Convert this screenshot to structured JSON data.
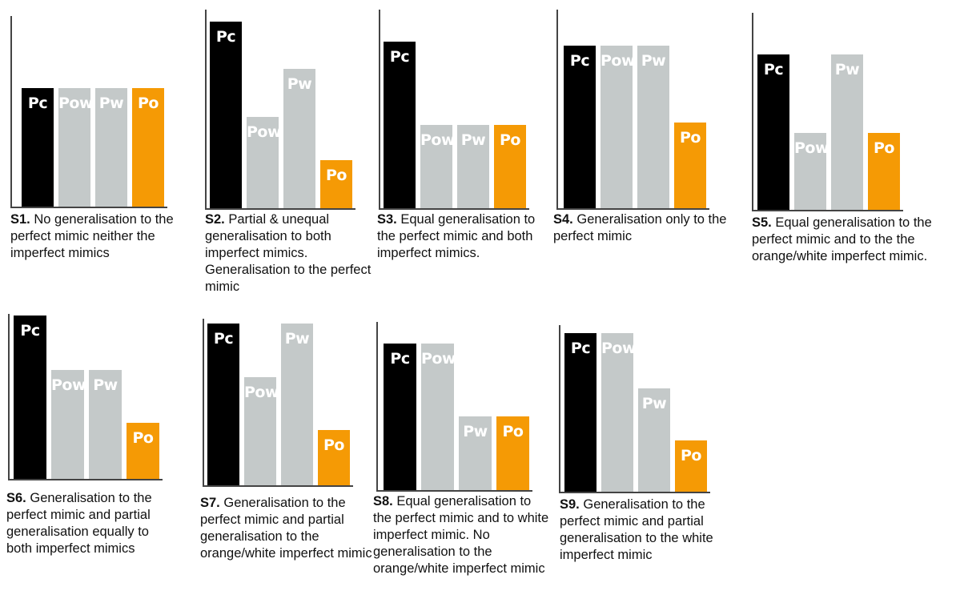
{
  "colors": {
    "Pc": "#000000",
    "Pow": "#c4c9c9",
    "Pw": "#c4c9c9",
    "Po": "#f59a05"
  },
  "chart_data": [
    {
      "type": "bar",
      "id": "S1",
      "categories": [
        "Pc",
        "Pow",
        "Pw",
        "Po"
      ],
      "values": [
        0.62,
        0.62,
        0.62,
        0.62
      ],
      "caption_id": "S1.",
      "caption_text": "No generalisation to the perfect mimic neither the imperfect mimics"
    },
    {
      "type": "bar",
      "id": "S2",
      "categories": [
        "Pc",
        "Pow",
        "Pw",
        "Po"
      ],
      "values": [
        0.94,
        0.46,
        0.7,
        0.24
      ],
      "caption_id": "S2.",
      "caption_text": "Partial & unequal generalisation to both imperfect mimics. Generalisation to the perfect mimic"
    },
    {
      "type": "bar",
      "id": "S3",
      "categories": [
        "Pc",
        "Pow",
        "Pw",
        "Po"
      ],
      "values": [
        0.84,
        0.42,
        0.42,
        0.42
      ],
      "caption_id": "S3.",
      "caption_text": "Equal generalisation to the perfect mimic and both imperfect mimics."
    },
    {
      "type": "bar",
      "id": "S4",
      "categories": [
        "Pc",
        "Pow",
        "Pw",
        "Po"
      ],
      "values": [
        0.82,
        0.82,
        0.82,
        0.43
      ],
      "caption_id": "S4.",
      "caption_text": "Generalisation only to the perfect mimic"
    },
    {
      "type": "bar",
      "id": "S5",
      "categories": [
        "Pc",
        "Pow",
        "Pw",
        "Po"
      ],
      "values": [
        0.79,
        0.39,
        0.79,
        0.39
      ],
      "caption_id": "S5.",
      "caption_text": "Equal generalisation to the perfect mimic and to the the orange/white imperfect mimic."
    },
    {
      "type": "bar",
      "id": "S6",
      "categories": [
        "Pc",
        "Pow",
        "Pw",
        "Po"
      ],
      "values": [
        0.99,
        0.66,
        0.66,
        0.34
      ],
      "caption_id": "S6.",
      "caption_text": "Generalisation to the perfect mimic and partial generalisation equally to both imperfect mimics"
    },
    {
      "type": "bar",
      "id": "S7",
      "categories": [
        "Pc",
        "Pow",
        "Pw",
        "Po"
      ],
      "values": [
        0.97,
        0.65,
        0.97,
        0.33
      ],
      "caption_id": "S7.",
      "caption_text": "Generalisation to the perfect mimic and partial generalisation to the orange/white imperfect mimic"
    },
    {
      "type": "bar",
      "id": "S8",
      "categories": [
        "Pc",
        "Pow",
        "Pw",
        "Po"
      ],
      "values": [
        0.87,
        0.87,
        0.44,
        0.44
      ],
      "caption_id": "S8.",
      "caption_text": "Equal generalisation to the perfect mimic and to white imperfect mimic. No generalisation to the orange/white imperfect mimic"
    },
    {
      "type": "bar",
      "id": "S9",
      "categories": [
        "Pc",
        "Pow",
        "Pw",
        "Po"
      ],
      "values": [
        0.95,
        0.95,
        0.62,
        0.31
      ],
      "caption_id": "S9.",
      "caption_text": "Generalisation to the perfect mimic and partial generalisation to the white imperfect mimic"
    }
  ]
}
